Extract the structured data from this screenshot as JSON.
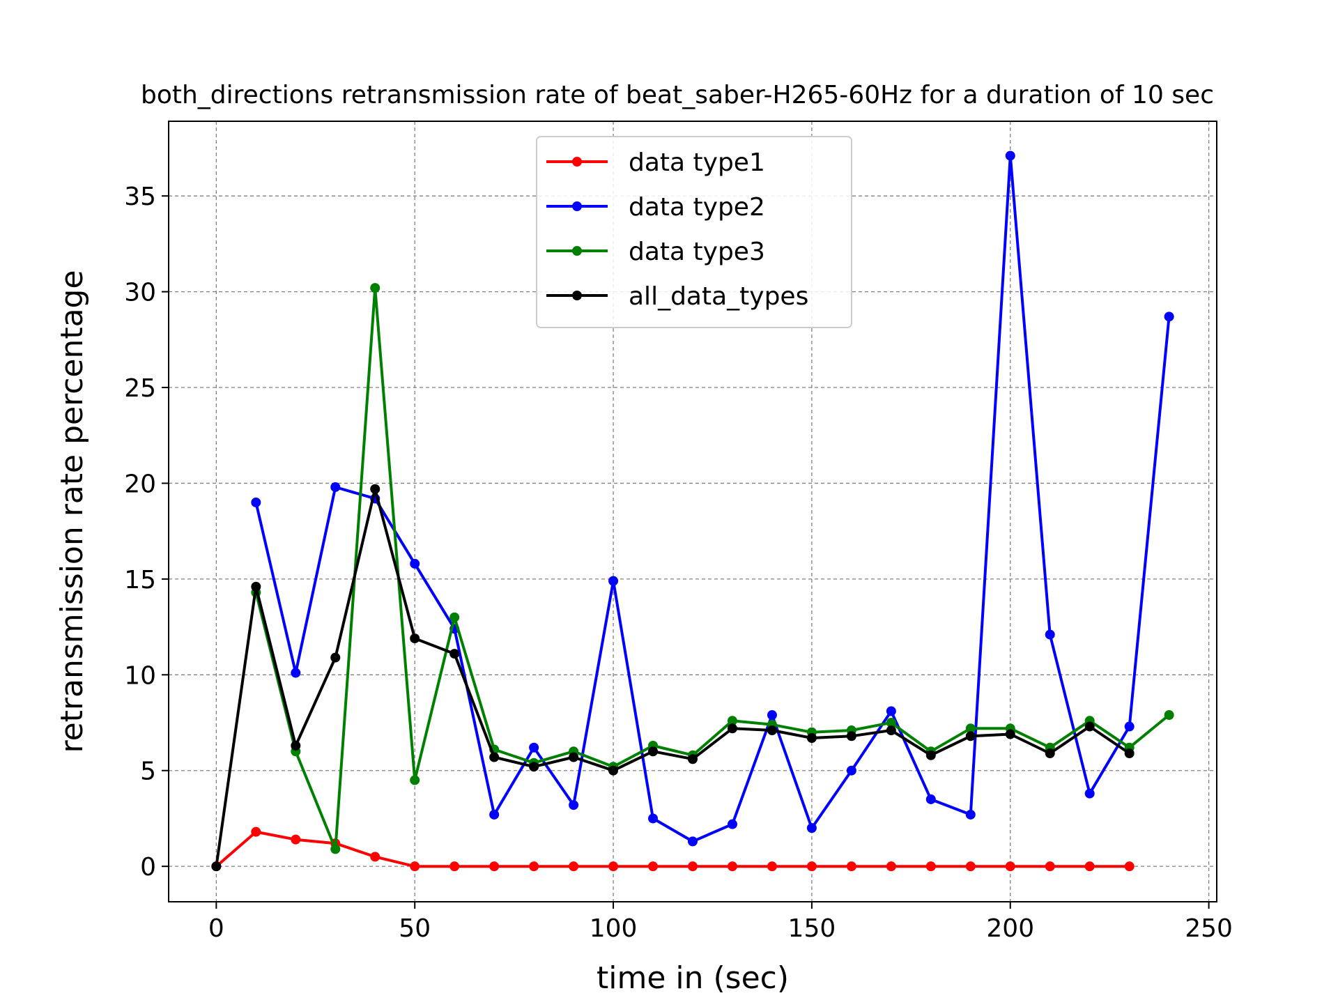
{
  "chart_data": {
    "type": "line",
    "title": "both_directions retransmission rate of beat_saber-H265-60Hz for a duration of 10 sec",
    "xlabel": "time in (sec)",
    "ylabel": "retransmission rate percentage",
    "xlim": [
      -12,
      252
    ],
    "ylim": [
      -1.85,
      38.9
    ],
    "xticks": [
      0,
      50,
      100,
      150,
      200,
      250
    ],
    "yticks": [
      0,
      5,
      10,
      15,
      20,
      25,
      30,
      35
    ],
    "grid": true,
    "legend_position": "upper center",
    "series": [
      {
        "name": "data type1",
        "color": "#ff0000",
        "x": [
          0,
          10,
          20,
          30,
          40,
          50,
          60,
          70,
          80,
          90,
          100,
          110,
          120,
          130,
          140,
          150,
          160,
          170,
          180,
          190,
          200,
          210,
          220,
          230
        ],
        "y": [
          0,
          1.8,
          1.4,
          1.2,
          0.5,
          0,
          0,
          0,
          0,
          0,
          0,
          0,
          0,
          0,
          0,
          0,
          0,
          0,
          0,
          0,
          0,
          0,
          0,
          0
        ]
      },
      {
        "name": "data type2",
        "color": "#0000ff",
        "x": [
          10,
          20,
          30,
          40,
          50,
          60,
          70,
          80,
          90,
          100,
          110,
          120,
          130,
          140,
          150,
          160,
          170,
          180,
          190,
          200,
          210,
          220,
          230,
          240
        ],
        "y": [
          19.0,
          10.1,
          19.8,
          19.2,
          15.8,
          12.4,
          2.7,
          6.2,
          3.2,
          14.9,
          2.5,
          1.3,
          2.2,
          7.9,
          2.0,
          5.0,
          8.1,
          3.5,
          2.7,
          37.1,
          12.1,
          3.8,
          7.3,
          28.7
        ]
      },
      {
        "name": "data type3",
        "color": "#008000",
        "x": [
          10,
          20,
          30,
          40,
          50,
          60,
          70,
          80,
          90,
          100,
          110,
          120,
          130,
          140,
          150,
          160,
          170,
          180,
          190,
          200,
          210,
          220,
          230,
          240
        ],
        "y": [
          14.3,
          6.0,
          0.9,
          30.2,
          4.5,
          13.0,
          6.1,
          5.4,
          6.0,
          5.2,
          6.3,
          5.8,
          7.6,
          7.4,
          7.0,
          7.1,
          7.5,
          6.0,
          7.2,
          7.2,
          6.2,
          7.6,
          6.2,
          7.9
        ]
      },
      {
        "name": "all_data_types",
        "color": "#000000",
        "x": [
          0,
          10,
          20,
          30,
          40,
          50,
          60,
          70,
          80,
          90,
          100,
          110,
          120,
          130,
          140,
          150,
          160,
          170,
          180,
          190,
          200,
          210,
          220,
          230
        ],
        "y": [
          0,
          14.6,
          6.3,
          10.9,
          19.7,
          11.9,
          11.1,
          5.7,
          5.2,
          5.7,
          5.0,
          6.0,
          5.6,
          7.2,
          7.1,
          6.7,
          6.8,
          7.1,
          5.8,
          6.8,
          6.9,
          5.9,
          7.3,
          5.9
        ]
      }
    ]
  }
}
